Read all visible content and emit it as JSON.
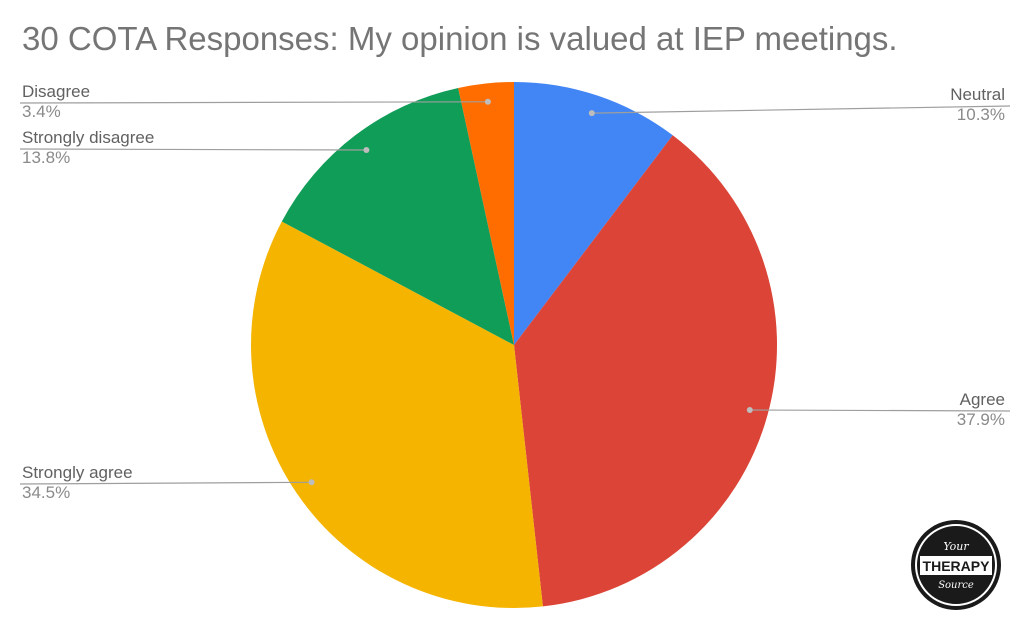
{
  "chart_data": {
    "type": "pie",
    "title": "30 COTA Responses: My opinion is valued at IEP meetings.",
    "slices": [
      {
        "label": "Neutral",
        "value": 10.3,
        "display": "10.3%",
        "color": "#4285F4"
      },
      {
        "label": "Agree",
        "value": 37.9,
        "display": "37.9%",
        "color": "#DB4437"
      },
      {
        "label": "Strongly agree",
        "value": 34.5,
        "display": "34.5%",
        "color": "#F4B400"
      },
      {
        "label": "Strongly disagree",
        "value": 13.8,
        "display": "13.8%",
        "color": "#0F9D58"
      },
      {
        "label": "Disagree",
        "value": 3.4,
        "display": "3.4%",
        "color": "#FF6D00"
      }
    ],
    "legend": "none",
    "label_style": "leader-lines"
  },
  "logo": {
    "line1": "Your",
    "line2": "THERAPY",
    "line3": "Source"
  }
}
